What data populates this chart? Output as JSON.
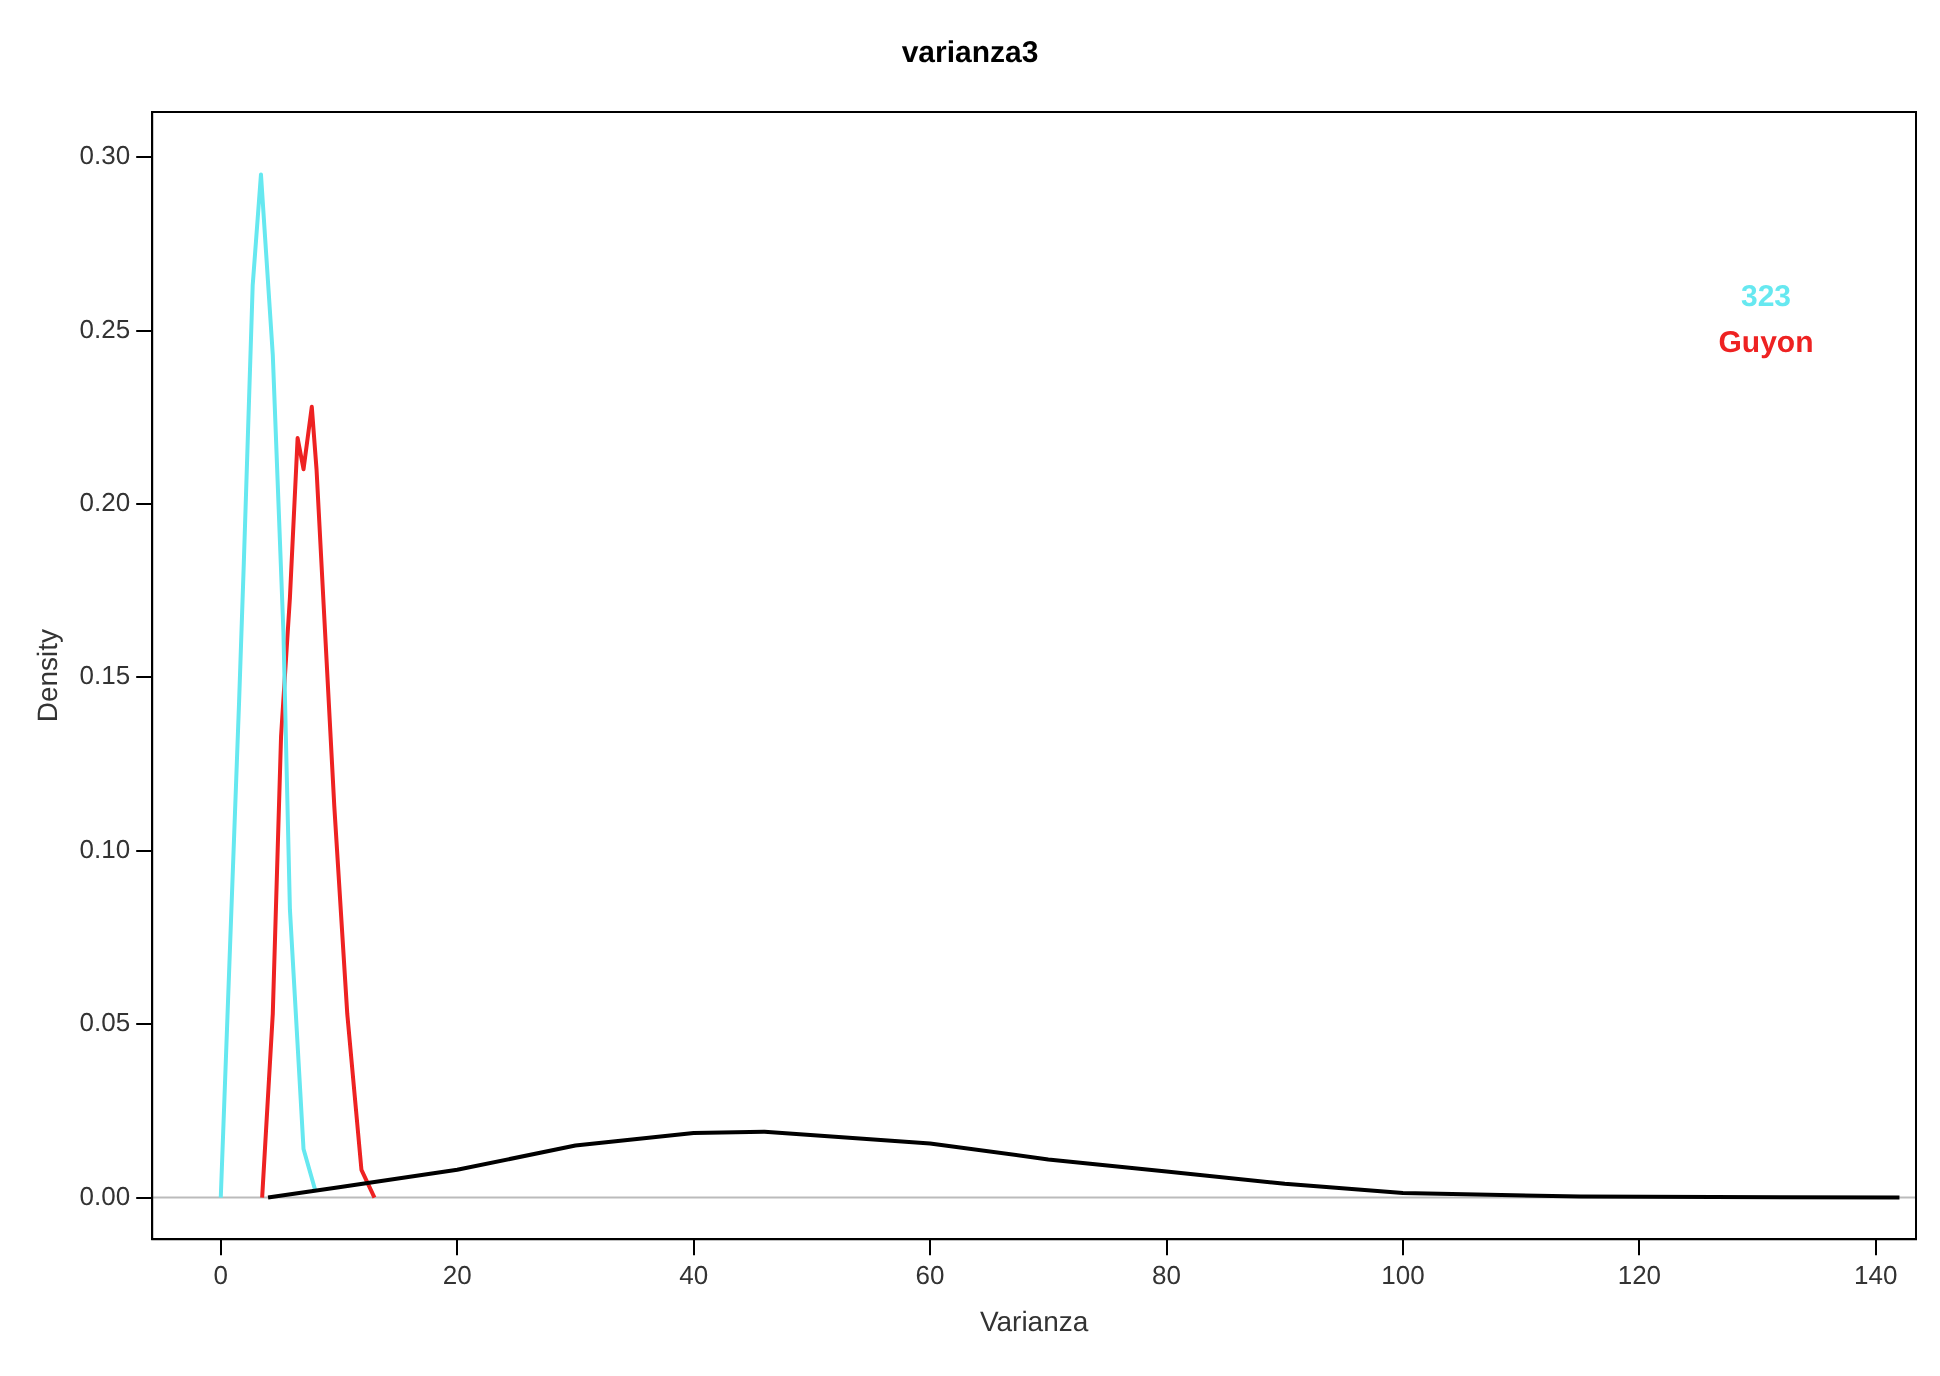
{
  "chart_data": {
    "type": "line",
    "title": "varianza3",
    "xlabel": "Varianza",
    "ylabel": "Density",
    "xlim": [
      -5.8,
      143.4
    ],
    "ylim": [
      -0.012,
      0.313
    ],
    "xticks": [
      0,
      20,
      40,
      60,
      80,
      100,
      120,
      140
    ],
    "yticks": [
      {
        "value": 0,
        "label": "0.00"
      },
      0.05,
      {
        "value": 0.1,
        "label": "0.10"
      },
      0.15,
      {
        "value": 0.2,
        "label": "0.20"
      },
      0.25,
      {
        "value": 0.3,
        "label": "0.30"
      }
    ],
    "grid": false,
    "legend": "top right",
    "marker": "none",
    "line_style": "solid",
    "ref_lines": [
      {
        "axis": "y",
        "value": 0,
        "color": "#bbbbbb"
      }
    ],
    "series": [
      {
        "color": "#000000",
        "x": [
          4,
          10,
          20,
          30,
          40,
          46,
          60,
          70,
          80,
          90,
          100,
          115,
          142
        ],
        "values": [
          0,
          0.003,
          0.008,
          0.015,
          0.0186,
          0.019,
          0.0156,
          0.011,
          0.0075,
          0.004,
          0.0013,
          0.0003,
          0
        ]
      },
      {
        "name": "323",
        "color": "#66e8f0",
        "x": [
          0,
          1.55,
          1.95,
          2.7,
          3.4,
          4.4,
          5.3,
          5.85,
          7,
          8
        ],
        "values": [
          0,
          0.143,
          0.183,
          0.263,
          0.295,
          0.243,
          0.163,
          0.083,
          0.014,
          0.002
        ]
      },
      {
        "name": "Guyon",
        "color": "#ee2222",
        "x": [
          3.5,
          4.4,
          5.1,
          5.85,
          6.5,
          7.0,
          7.7,
          8.1,
          8.7,
          9.6,
          10.7,
          11.9,
          13
        ],
        "values": [
          0,
          0.053,
          0.133,
          0.173,
          0.219,
          0.21,
          0.228,
          0.21,
          0.171,
          0.113,
          0.053,
          0.008,
          0
        ]
      }
    ]
  }
}
